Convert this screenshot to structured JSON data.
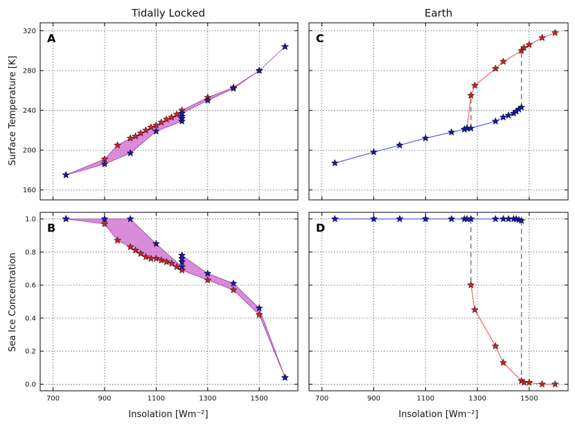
{
  "column_titles": [
    "Tidally Locked",
    "Earth"
  ],
  "colors": {
    "warm": "#cc2222",
    "cold": "#1a1aa6",
    "warm_line": "#ee5555",
    "cold_line": "#4a4ae6",
    "fill": "#cc66cc",
    "jump": "#777777"
  },
  "chart_data": [
    {
      "id": "A",
      "type": "line",
      "letter": "A",
      "column_title": "Tidally Locked",
      "xlabel": "",
      "ylabel": "Surface Temperature [K]",
      "xlim": [
        650,
        1650
      ],
      "ylim": [
        150,
        328
      ],
      "xticks": [
        700,
        900,
        1100,
        1300,
        1500
      ],
      "yticks": [
        160,
        200,
        240,
        280,
        320
      ],
      "show_xticklabels": false,
      "fill_between": true,
      "series": [
        {
          "name": "warm",
          "x": [
            750,
            900,
            950,
            1000,
            1020,
            1040,
            1060,
            1080,
            1100,
            1120,
            1140,
            1160,
            1180,
            1200,
            1300,
            1400,
            1500,
            1600
          ],
          "y": [
            175,
            191,
            205,
            212,
            214,
            217,
            220,
            223,
            225,
            228,
            231,
            233,
            236,
            240,
            253,
            263,
            280,
            304
          ]
        },
        {
          "name": "cold",
          "x": [
            750,
            900,
            1000,
            1100,
            1200,
            1200,
            1200,
            1200,
            1300,
            1400,
            1500,
            1600
          ],
          "y": [
            175,
            186,
            197,
            219,
            229,
            232,
            234,
            237,
            250,
            262,
            280,
            304
          ]
        }
      ]
    },
    {
      "id": "B",
      "type": "line",
      "letter": "B",
      "xlabel": "Insolation [Wm⁻²]",
      "ylabel": "Sea Ice Concentration",
      "xlim": [
        650,
        1650
      ],
      "ylim": [
        -0.04,
        1.04
      ],
      "xticks": [
        700,
        900,
        1100,
        1300,
        1500
      ],
      "xticklabels": [
        "700",
        "900",
        "1100",
        "1300",
        "1500"
      ],
      "yticks": [
        0.0,
        0.2,
        0.4,
        0.6,
        0.8,
        1.0
      ],
      "yticklabels": [
        "0.0",
        "0.2",
        "0.4",
        "0.6",
        "0.8",
        "1.0"
      ],
      "show_xticklabels": true,
      "fill_between": true,
      "series": [
        {
          "name": "warm",
          "x": [
            750,
            900,
            950,
            1000,
            1020,
            1040,
            1060,
            1080,
            1100,
            1120,
            1140,
            1160,
            1180,
            1200,
            1300,
            1400,
            1500,
            1600
          ],
          "y": [
            1.0,
            0.97,
            0.87,
            0.83,
            0.81,
            0.79,
            0.77,
            0.76,
            0.76,
            0.75,
            0.74,
            0.73,
            0.71,
            0.69,
            0.63,
            0.57,
            0.42,
            0.04
          ]
        },
        {
          "name": "cold",
          "x": [
            750,
            900,
            1000,
            1100,
            1200,
            1200,
            1200,
            1200,
            1300,
            1400,
            1500,
            1600
          ],
          "y": [
            1.0,
            1.0,
            1.0,
            0.85,
            0.71,
            0.74,
            0.76,
            0.78,
            0.67,
            0.61,
            0.46,
            0.04
          ]
        }
      ]
    },
    {
      "id": "C",
      "type": "line",
      "letter": "C",
      "column_title": "Earth",
      "xlabel": "",
      "ylabel": "",
      "xlim": [
        650,
        1650
      ],
      "ylim": [
        150,
        328
      ],
      "xticks": [
        700,
        900,
        1100,
        1300,
        1500
      ],
      "yticks": [
        160,
        200,
        240,
        280,
        320
      ],
      "show_xticklabels": false,
      "show_yticklabels": false,
      "fill_between": false,
      "jumps": [
        [
          1275,
          222,
          1275,
          255
        ],
        [
          1470,
          243,
          1470,
          300
        ]
      ],
      "series": [
        {
          "name": "warm",
          "x": [
            1250,
            1260,
            1275,
            1290,
            1370,
            1400,
            1470,
            1480,
            1500,
            1550,
            1600
          ],
          "y": [
            221,
            222,
            255,
            265,
            282,
            289,
            300,
            303,
            306,
            313,
            318
          ]
        },
        {
          "name": "cold",
          "x": [
            750,
            900,
            1000,
            1100,
            1200,
            1250,
            1260,
            1275,
            1370,
            1400,
            1420,
            1440,
            1450,
            1460,
            1470
          ],
          "y": [
            187,
            198,
            205,
            212,
            218,
            221,
            222,
            222,
            229,
            233,
            235,
            237,
            239,
            241,
            243
          ]
        }
      ]
    },
    {
      "id": "D",
      "type": "line",
      "letter": "D",
      "xlabel": "Insolation [Wm⁻²]",
      "ylabel": "",
      "xlim": [
        650,
        1650
      ],
      "ylim": [
        -0.04,
        1.04
      ],
      "xticks": [
        700,
        900,
        1100,
        1300,
        1500
      ],
      "xticklabels": [
        "700",
        "900",
        "1100",
        "1300",
        "1500"
      ],
      "yticks": [
        0.0,
        0.2,
        0.4,
        0.6,
        0.8,
        1.0
      ],
      "show_xticklabels": true,
      "show_yticklabels": false,
      "fill_between": false,
      "jumps": [
        [
          1275,
          1.0,
          1275,
          0.6
        ],
        [
          1470,
          0.99,
          1470,
          0.02
        ]
      ],
      "series": [
        {
          "name": "warm",
          "x": [
            1275,
            1290,
            1370,
            1400,
            1470,
            1480,
            1500,
            1550,
            1600
          ],
          "y": [
            0.6,
            0.45,
            0.23,
            0.13,
            0.02,
            0.01,
            0.01,
            0.0,
            0.0
          ]
        },
        {
          "name": "cold",
          "x": [
            750,
            900,
            1000,
            1100,
            1200,
            1250,
            1260,
            1275,
            1370,
            1400,
            1420,
            1440,
            1450,
            1460,
            1470
          ],
          "y": [
            1.0,
            1.0,
            1.0,
            1.0,
            1.0,
            1.0,
            1.0,
            1.0,
            1.0,
            1.0,
            1.0,
            1.0,
            1.0,
            0.995,
            0.99
          ]
        }
      ]
    }
  ]
}
